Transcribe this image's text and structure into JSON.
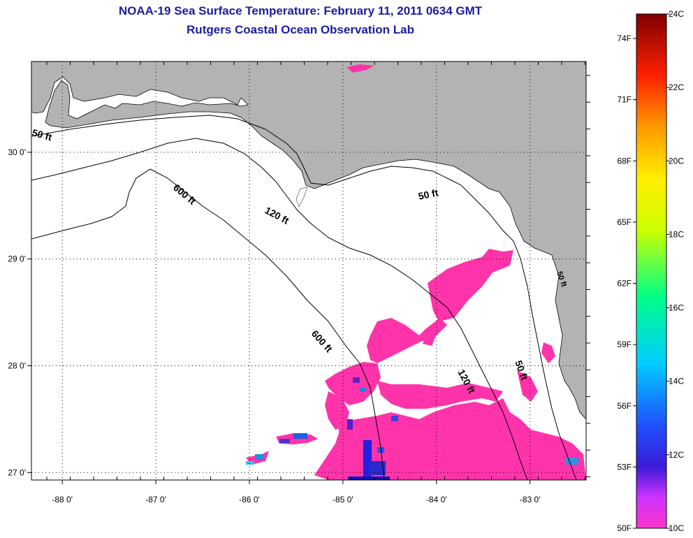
{
  "title": "NOAA-19 Sea Surface Temperature:  February 11, 2011 0634 GMT",
  "subtitle": "Rutgers Coastal Ocean Observation Lab",
  "map": {
    "lon_labels": [
      "-88 0'",
      "-87 0'",
      "-86 0'",
      "-85 0'",
      "-84 0'",
      "-83 0'"
    ],
    "lat_labels": [
      "30 0'",
      "29 0'",
      "28 0'",
      "27 0'"
    ],
    "lon_values": [
      -88,
      -87,
      -86,
      -85,
      -84,
      -83
    ],
    "lat_values": [
      30,
      29,
      28,
      27
    ],
    "lon_range": [
      -88.33,
      -82.4
    ],
    "lat_range": [
      26.93,
      30.85
    ],
    "contour_labels": [
      "50 ft",
      "600 ft",
      "120 ft",
      "50 ft",
      "600 ft",
      "120 ft",
      "50 ft",
      "50 ft"
    ],
    "colors": {
      "land": "#b3b3b3",
      "ocean_nodata": "#ffffff",
      "sst_10c": "#ff33aa",
      "sst_cold": "#2020e0"
    }
  },
  "colorbar": {
    "f_labels": [
      "74F",
      "71F",
      "68F",
      "65F",
      "62F",
      "59F",
      "56F",
      "53F",
      "50F"
    ],
    "c_labels": [
      "24C",
      "22C",
      "20C",
      "18C",
      "16C",
      "14C",
      "12C",
      "10C"
    ],
    "f_values": [
      74,
      71,
      68,
      65,
      62,
      59,
      56,
      53,
      50
    ],
    "c_values": [
      24,
      22,
      20,
      18,
      16,
      14,
      12,
      10
    ],
    "range_c": [
      10,
      24
    ]
  }
}
